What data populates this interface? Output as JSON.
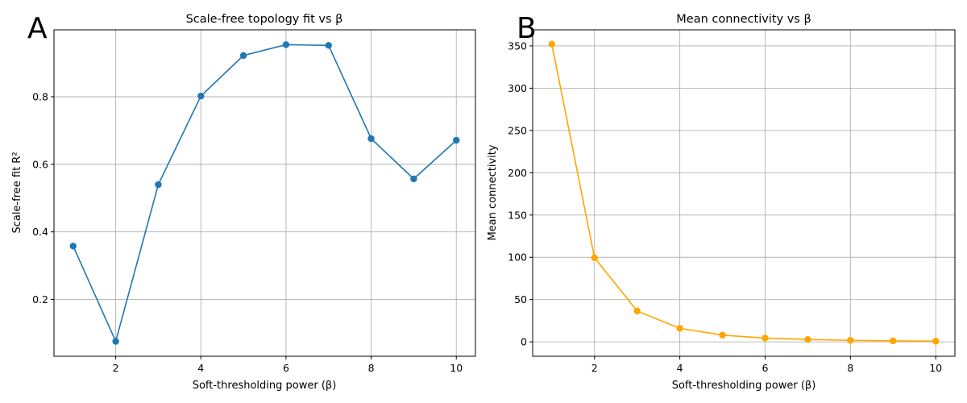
{
  "chart_data": [
    {
      "type": "line",
      "panel_label": "A",
      "title": "Scale-free topology fit vs β",
      "xlabel": "Soft-thresholding power (β)",
      "ylabel": "Scale-free fit R²",
      "x": [
        1,
        2,
        3,
        4,
        5,
        6,
        7,
        8,
        9,
        10
      ],
      "series": [
        {
          "name": "Scale-free fit R²",
          "color": "#1f77b4",
          "values": [
            0.358,
            0.076,
            0.54,
            0.802,
            0.922,
            0.954,
            0.952,
            0.676,
            0.557,
            0.671
          ]
        }
      ],
      "xlim": [
        0.55,
        10.45
      ],
      "ylim": [
        0.032,
        0.998
      ],
      "xticks": [
        2,
        4,
        6,
        8,
        10
      ],
      "xtick_labels": [
        "2",
        "4",
        "6",
        "8",
        "10"
      ],
      "yticks": [
        0.2,
        0.4,
        0.6,
        0.8
      ],
      "ytick_labels": [
        "0.2",
        "0.4",
        "0.6",
        "0.8"
      ],
      "grid": true
    },
    {
      "type": "line",
      "panel_label": "B",
      "title": "Mean connectivity vs β",
      "xlabel": "Soft-thresholding power (β)",
      "ylabel": "Mean connectivity",
      "x": [
        1,
        2,
        3,
        4,
        5,
        6,
        7,
        8,
        9,
        10
      ],
      "series": [
        {
          "name": "Mean connectivity",
          "color": "#ffa500",
          "values": [
            352,
            99.5,
            36.5,
            16,
            8,
            4.5,
            2.8,
            1.8,
            1.2,
            0.8
          ]
        }
      ],
      "xlim": [
        0.55,
        10.45
      ],
      "ylim": [
        -17,
        369
      ],
      "xticks": [
        2,
        4,
        6,
        8,
        10
      ],
      "xtick_labels": [
        "2",
        "4",
        "6",
        "8",
        "10"
      ],
      "yticks": [
        0,
        50,
        100,
        150,
        200,
        250,
        300,
        350
      ],
      "ytick_labels": [
        "0",
        "50",
        "100",
        "150",
        "200",
        "250",
        "300",
        "350"
      ],
      "grid": true
    }
  ]
}
